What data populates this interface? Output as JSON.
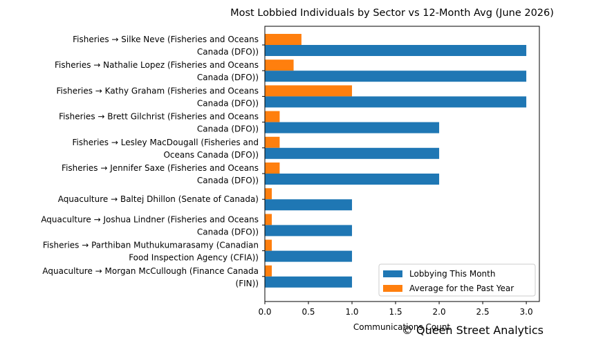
{
  "chart_data": {
    "type": "bar",
    "orientation": "horizontal",
    "title": "Most Lobbied Individuals by Sector vs 12-Month Avg (June 2026)",
    "xlabel": "Communications Count",
    "ylabel": "",
    "xlim": [
      0,
      3.15
    ],
    "xticks": [
      "0.0",
      "0.5",
      "1.0",
      "1.5",
      "2.0",
      "2.5",
      "3.0"
    ],
    "grid": false,
    "legend_position": "lower-right",
    "categories": [
      [
        "Fisheries → Silke Neve (Fisheries and Oceans",
        "Canada (DFO))"
      ],
      [
        "Fisheries → Nathalie Lopez (Fisheries and Oceans",
        "Canada (DFO))"
      ],
      [
        "Fisheries → Kathy Graham (Fisheries and Oceans",
        "Canada (DFO))"
      ],
      [
        "Fisheries → Brett Gilchrist (Fisheries and Oceans",
        "Canada (DFO))"
      ],
      [
        "Fisheries → Lesley MacDougall (Fisheries and",
        "Oceans Canada (DFO))"
      ],
      [
        "Fisheries → Jennifer Saxe (Fisheries and Oceans",
        "Canada (DFO))"
      ],
      [
        "Aquaculture → Baltej Dhillon (Senate of Canada)"
      ],
      [
        "Aquaculture → Joshua Lindner (Fisheries and Oceans",
        "Canada (DFO))"
      ],
      [
        "Fisheries → Parthiban Muthukumarasamy (Canadian",
        "Food Inspection Agency (CFIA))"
      ],
      [
        "Aquaculture → Morgan McCullough (Finance Canada",
        "(FIN))"
      ]
    ],
    "series": [
      {
        "name": "Lobbying This Month",
        "color": "#1f77b4",
        "values": [
          3,
          3,
          3,
          2,
          2,
          2,
          1,
          1,
          1,
          1
        ]
      },
      {
        "name": "Average for the Past Year",
        "color": "#ff7f0e",
        "values": [
          0.42,
          0.33,
          1.0,
          0.17,
          0.17,
          0.17,
          0.08,
          0.08,
          0.08,
          0.08
        ]
      }
    ]
  },
  "watermark": "© Queen Street Analytics"
}
